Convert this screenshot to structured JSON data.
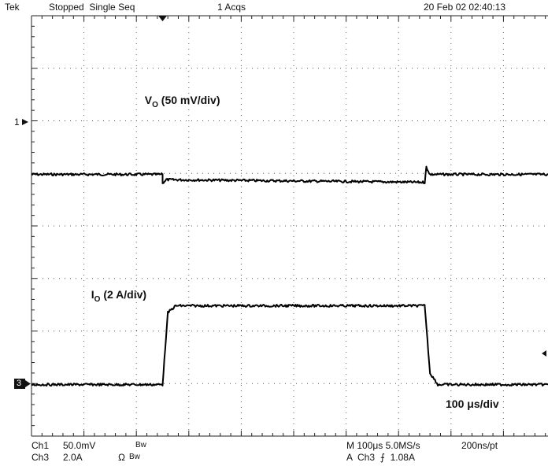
{
  "header": {
    "brand": "Tek",
    "status": "Stopped  Single Seq",
    "acqs": "1 Acqs",
    "datetime": "20 Feb 02 02:40:13"
  },
  "labels": {
    "vo_main": "V",
    "vo_sub": "O",
    "vo_rest": "(50 mV/div)",
    "io_main": "I",
    "io_sub": "O",
    "io_rest": "(2 A/div)",
    "timebase": "100 μs/div"
  },
  "markers": {
    "ch1": "1",
    "ch3": "3"
  },
  "footer": {
    "ch1_name": "Ch1",
    "ch1_scale": "50.0mV",
    "ch1_bw": "Bw",
    "ch3_name": "Ch3",
    "ch3_scale": "2.0A",
    "ch3_ohm": "Ω",
    "ch3_bw": "Bw",
    "horiz": "M 100μs 5.0MS/s",
    "trigger": "A  Ch3  ⨍  1.08A",
    "resolution": "200ns/pt"
  },
  "chart_data": {
    "type": "line",
    "xlabel": "",
    "ylabel": "",
    "x_divisions": 10,
    "y_divisions": 8,
    "grid": true,
    "series": [
      {
        "points": [
          [
            0.0,
            4.98
          ],
          [
            2.5,
            4.98
          ],
          [
            2.5,
            4.82
          ],
          [
            2.57,
            4.88
          ],
          [
            7.5,
            4.83
          ],
          [
            7.53,
            5.12
          ],
          [
            7.6,
            4.98
          ],
          [
            10.0,
            4.98
          ]
        ]
      },
      {
        "points": [
          [
            0.0,
            0.98
          ],
          [
            2.5,
            0.98
          ],
          [
            2.6,
            2.35
          ],
          [
            2.75,
            2.48
          ],
          [
            7.5,
            2.48
          ],
          [
            7.6,
            1.2
          ],
          [
            7.75,
            0.98
          ],
          [
            10.0,
            0.98
          ]
        ]
      }
    ]
  }
}
